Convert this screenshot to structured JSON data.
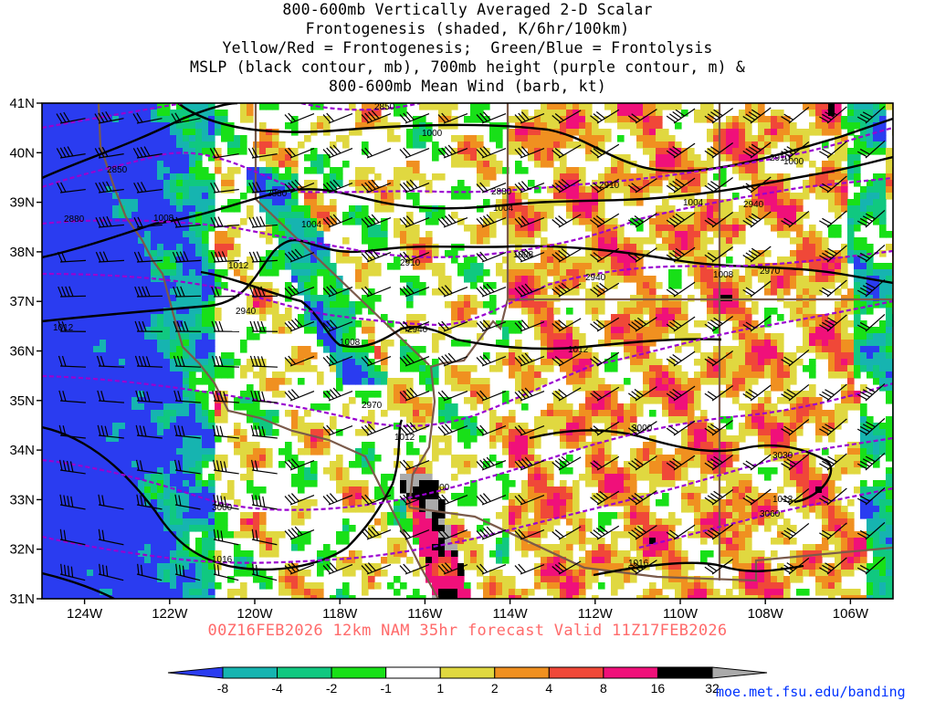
{
  "title_lines": [
    "800-600mb Vertically Averaged 2-D Scalar",
    "Frontogenesis (shaded, K/6hr/100km)",
    "Yellow/Red = Frontogenesis;  Green/Blue = Frontolysis",
    "MSLP (black contour, mb), 700mb height (purple contour, m) &",
    "800-600mb Mean Wind (barb, kt)"
  ],
  "valid_line": "00Z16FEB2026 12km NAM 35hr forecast Valid 11Z17FEB2026",
  "credit": "moe.met.fsu.edu/banding",
  "colors": {
    "valid_text": "#ff6a6a",
    "credit_text": "#0033ff",
    "mslp_contour": "#000000",
    "height_contour": "#9a00d0",
    "state_border": "#7a5a4a"
  },
  "lat_labels": [
    "41N",
    "40N",
    "39N",
    "38N",
    "37N",
    "36N",
    "35N",
    "34N",
    "33N",
    "32N",
    "31N"
  ],
  "lon_labels": [
    "124W",
    "122W",
    "120W",
    "118W",
    "116W",
    "114W",
    "112W",
    "110W",
    "108W",
    "106W"
  ],
  "mslp_labels": [
    "1000",
    "1000",
    "1004",
    "1004",
    "1004",
    "1008",
    "1008",
    "1008",
    "1008",
    "1012",
    "1012",
    "1012",
    "1012",
    "1012",
    "1016",
    "1016"
  ],
  "height_labels": [
    "2850",
    "2850",
    "2880",
    "2880",
    "2880",
    "2910",
    "2910",
    "2910",
    "2940",
    "2940",
    "2940",
    "2940",
    "2970",
    "2970",
    "3000",
    "3000",
    "3000",
    "3030",
    "3060"
  ],
  "colorbar": {
    "ticks": [
      "-8",
      "-4",
      "-2",
      "-1",
      "1",
      "2",
      "4",
      "8",
      "16",
      "32"
    ],
    "colors": [
      "#2a3cf0",
      "#16b4b0",
      "#10c880",
      "#18e018",
      "#ffffff",
      "#e0d840",
      "#f09020",
      "#f04838",
      "#f0107a",
      "#000000",
      "#aaaaaa"
    ]
  }
}
